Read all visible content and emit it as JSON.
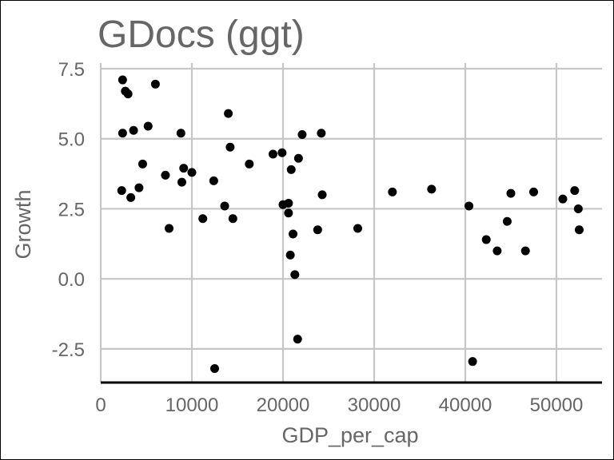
{
  "chart_data": {
    "type": "scatter",
    "title": "GDocs (ggt)",
    "xlabel": "GDP_per_cap",
    "ylabel": "Growth",
    "xlim": [
      0,
      55000
    ],
    "ylim": [
      -3.7,
      7.7
    ],
    "xticks": [
      0,
      10000,
      20000,
      30000,
      40000,
      50000
    ],
    "xtick_labels": [
      "0",
      "10000",
      "20000",
      "30000",
      "40000",
      "50000"
    ],
    "yticks": [
      -2.5,
      0.0,
      2.5,
      5.0,
      7.5
    ],
    "ytick_labels": [
      "-2.5",
      "0.0",
      "2.5",
      "5.0",
      "7.5"
    ],
    "grid": true,
    "legend": "none",
    "point_color": "#000000",
    "points": [
      {
        "x": 2400,
        "y": 7.1
      },
      {
        "x": 2700,
        "y": 6.7
      },
      {
        "x": 3000,
        "y": 6.6
      },
      {
        "x": 3600,
        "y": 5.3
      },
      {
        "x": 2400,
        "y": 5.2
      },
      {
        "x": 5200,
        "y": 5.45
      },
      {
        "x": 6000,
        "y": 6.95
      },
      {
        "x": 8800,
        "y": 5.2
      },
      {
        "x": 4600,
        "y": 4.1
      },
      {
        "x": 7100,
        "y": 3.7
      },
      {
        "x": 9100,
        "y": 3.95
      },
      {
        "x": 10000,
        "y": 3.8
      },
      {
        "x": 8900,
        "y": 3.45
      },
      {
        "x": 4200,
        "y": 3.25
      },
      {
        "x": 2300,
        "y": 3.15
      },
      {
        "x": 3300,
        "y": 2.9
      },
      {
        "x": 7500,
        "y": 1.8
      },
      {
        "x": 11200,
        "y": 2.15
      },
      {
        "x": 12400,
        "y": 3.5
      },
      {
        "x": 13600,
        "y": 2.6
      },
      {
        "x": 14500,
        "y": 2.15
      },
      {
        "x": 14000,
        "y": 5.9
      },
      {
        "x": 14200,
        "y": 4.7
      },
      {
        "x": 16300,
        "y": 4.1
      },
      {
        "x": 18900,
        "y": 4.45
      },
      {
        "x": 19900,
        "y": 4.5
      },
      {
        "x": 20900,
        "y": 3.9
      },
      {
        "x": 21700,
        "y": 4.3
      },
      {
        "x": 22100,
        "y": 5.15
      },
      {
        "x": 24200,
        "y": 5.2
      },
      {
        "x": 24300,
        "y": 3.0
      },
      {
        "x": 20000,
        "y": 2.65
      },
      {
        "x": 20600,
        "y": 2.7
      },
      {
        "x": 20600,
        "y": 2.35
      },
      {
        "x": 21100,
        "y": 1.6
      },
      {
        "x": 20800,
        "y": 0.85
      },
      {
        "x": 21300,
        "y": 0.15
      },
      {
        "x": 23800,
        "y": 1.75
      },
      {
        "x": 28200,
        "y": 1.8
      },
      {
        "x": 21600,
        "y": -2.15
      },
      {
        "x": 12500,
        "y": -3.2
      },
      {
        "x": 32000,
        "y": 3.1
      },
      {
        "x": 36300,
        "y": 3.2
      },
      {
        "x": 40400,
        "y": 2.6
      },
      {
        "x": 40800,
        "y": -2.95
      },
      {
        "x": 42300,
        "y": 1.4
      },
      {
        "x": 43500,
        "y": 1.0
      },
      {
        "x": 44600,
        "y": 2.05
      },
      {
        "x": 45000,
        "y": 3.05
      },
      {
        "x": 46600,
        "y": 1.0
      },
      {
        "x": 47500,
        "y": 3.1
      },
      {
        "x": 50700,
        "y": 2.85
      },
      {
        "x": 52000,
        "y": 3.15
      },
      {
        "x": 52400,
        "y": 2.5
      },
      {
        "x": 52500,
        "y": 1.75
      }
    ]
  }
}
